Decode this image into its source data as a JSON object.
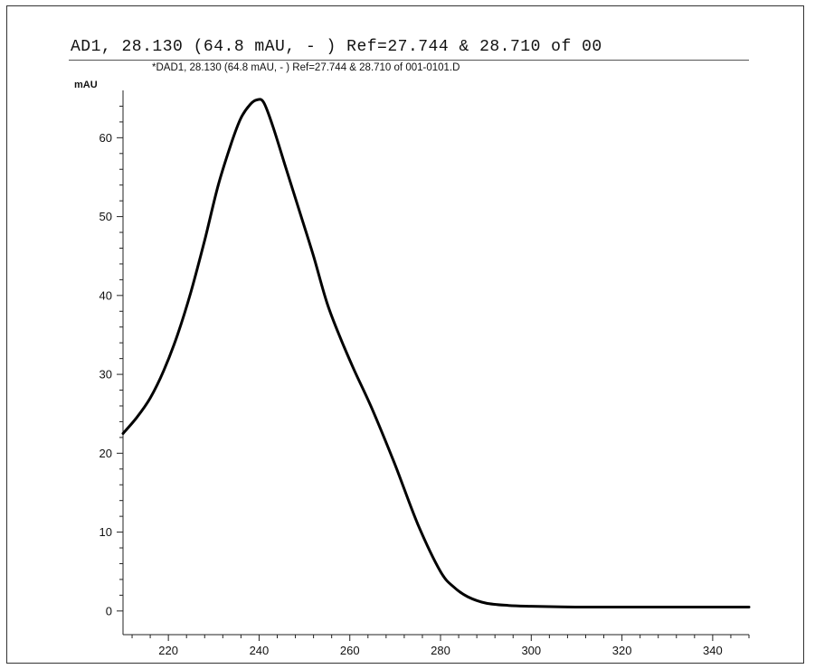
{
  "header": {
    "top_text": "AD1, 28.130 (64.8 mAU, - ) Ref=27.744 & 28.710 of 00",
    "subtitle": "*DAD1, 28.130 (64.8 mAU, - ) Ref=27.744 & 28.710 of 001-0101.D"
  },
  "chart_data": {
    "type": "line",
    "title": "*DAD1, 28.130 (64.8 mAU, - ) Ref=27.744 & 28.710 of 001-0101.D",
    "xlabel": "",
    "ylabel": "mAU",
    "xlim": [
      210,
      348
    ],
    "ylim": [
      -3,
      66
    ],
    "x_ticks": [
      220,
      240,
      260,
      280,
      300,
      320,
      340
    ],
    "y_ticks": [
      0,
      10,
      20,
      30,
      40,
      50,
      60
    ],
    "grid": false,
    "series": [
      {
        "name": "",
        "color": "#000000",
        "x": [
          210,
          213,
          216,
          219,
          222,
          225,
          228,
          231,
          234,
          236,
          238,
          239.5,
          241,
          243,
          246,
          249,
          252,
          255,
          258,
          261,
          265,
          270,
          275,
          280,
          283,
          286,
          290,
          295,
          300,
          310,
          320,
          330,
          340,
          348
        ],
        "y": [
          22.5,
          24.5,
          27,
          30.5,
          35,
          40.5,
          47,
          54,
          59.5,
          62.5,
          64.2,
          64.8,
          64.5,
          61.5,
          56,
          50.5,
          45,
          39,
          34.5,
          30.5,
          25.5,
          18.5,
          11,
          5,
          3,
          1.8,
          1.0,
          0.7,
          0.6,
          0.5,
          0.5,
          0.5,
          0.5,
          0.5
        ]
      }
    ]
  }
}
